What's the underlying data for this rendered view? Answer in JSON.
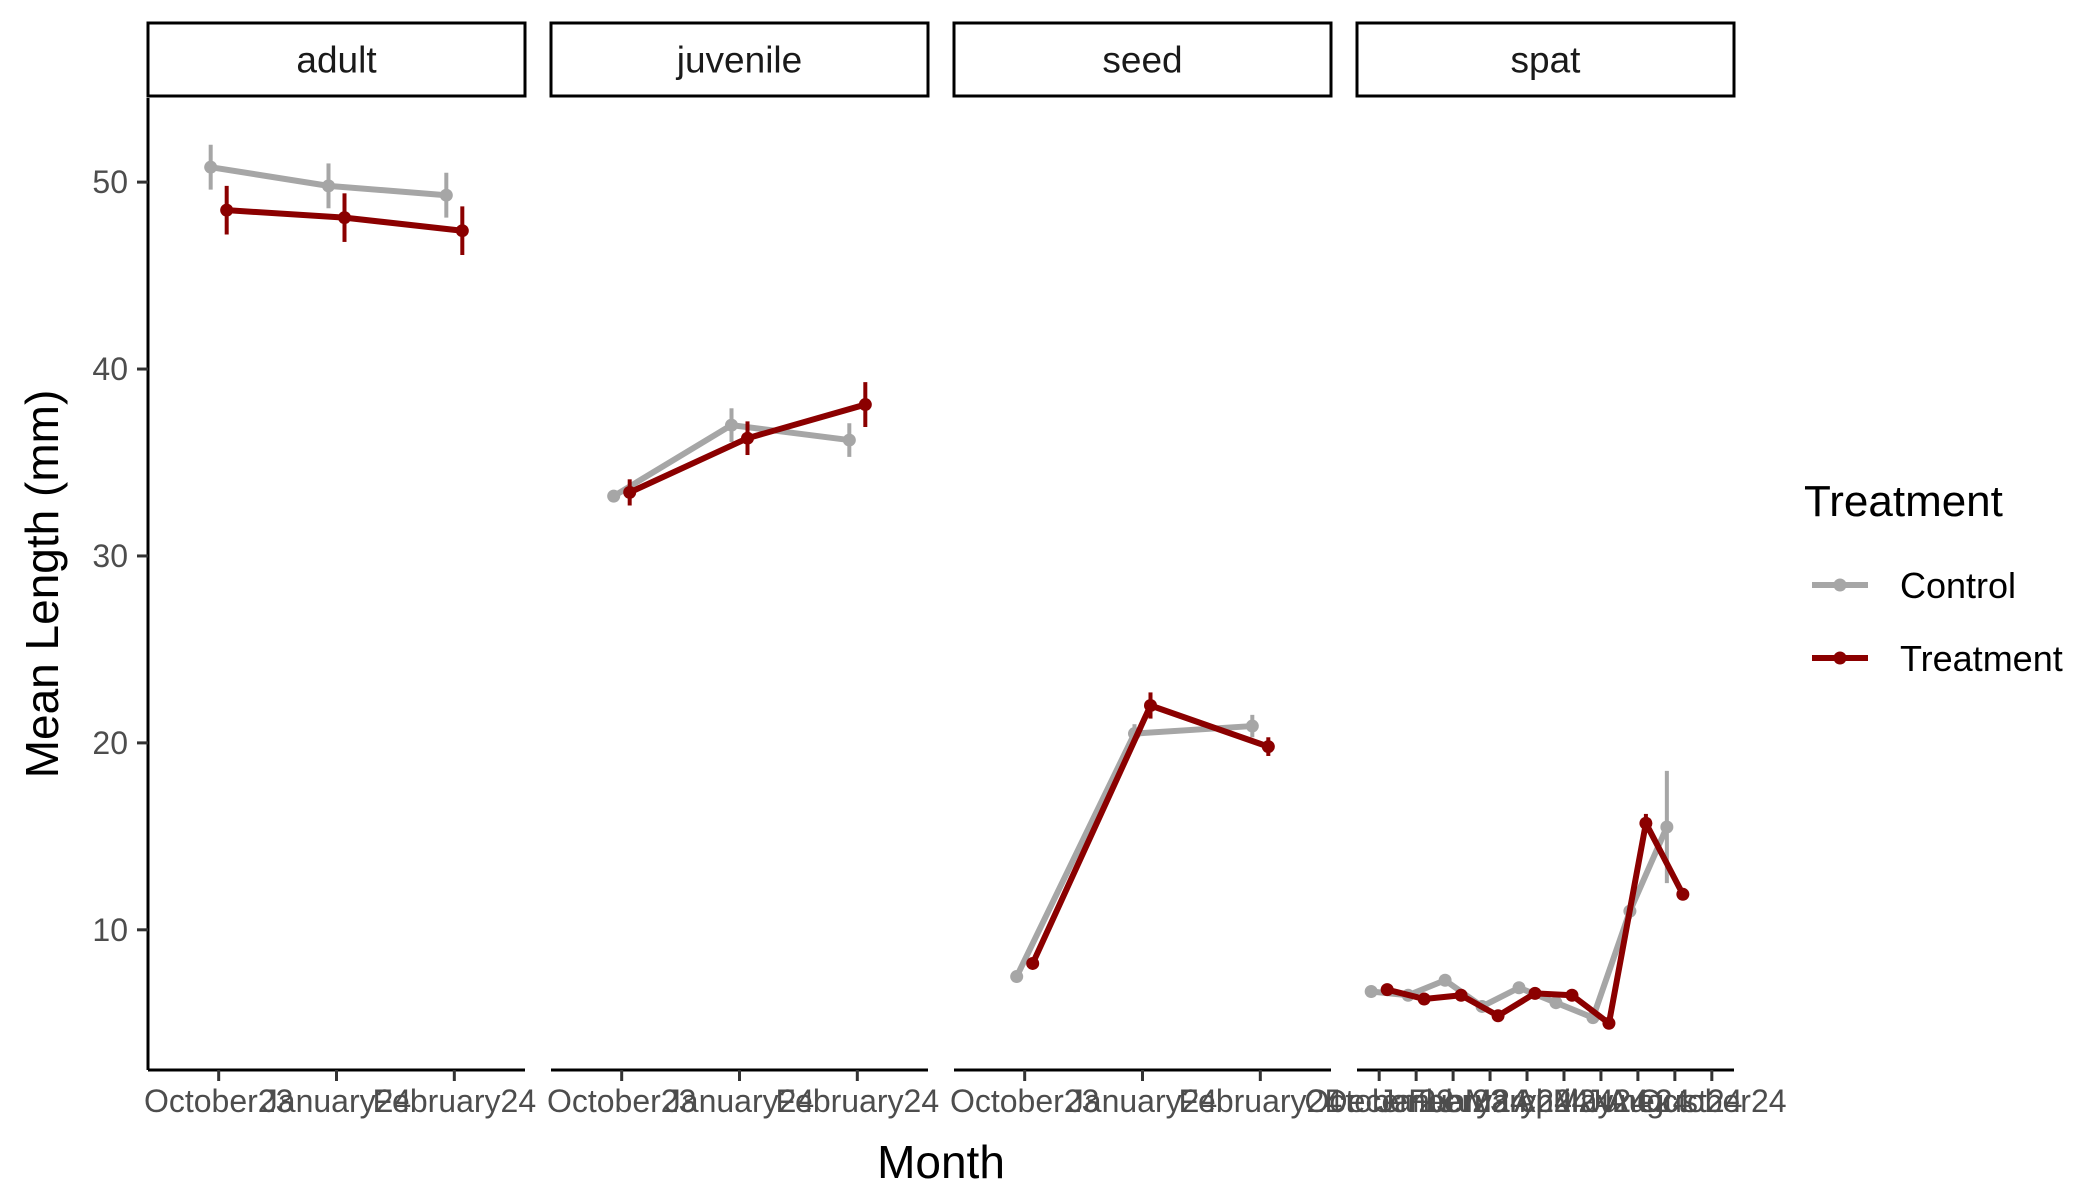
{
  "chart_data": {
    "type": "line",
    "xlabel": "Month",
    "ylabel": "Mean Length (mm)",
    "ylim": [
      2.5,
      54.5
    ],
    "y_ticks": [
      10,
      20,
      30,
      40,
      50
    ],
    "grid": false,
    "legend": {
      "title": "Treatment",
      "position": "right",
      "entries": [
        {
          "name": "Control",
          "color": "#a6a6a6"
        },
        {
          "name": "Treatment",
          "color": "#8b0000"
        }
      ]
    },
    "panels": [
      {
        "label": "adult",
        "categories": [
          "October23",
          "January24",
          "February24"
        ],
        "series": [
          {
            "name": "Control",
            "values": [
              50.8,
              49.8,
              49.3
            ],
            "error": [
              1.2,
              1.2,
              1.2
            ]
          },
          {
            "name": "Treatment",
            "values": [
              48.5,
              48.1,
              47.4
            ],
            "error": [
              1.3,
              1.3,
              1.3
            ]
          }
        ]
      },
      {
        "label": "juvenile",
        "categories": [
          "October23",
          "January24",
          "February24"
        ],
        "series": [
          {
            "name": "Control",
            "values": [
              33.2,
              37.0,
              36.2
            ],
            "error": [
              0.3,
              0.9,
              0.9
            ]
          },
          {
            "name": "Treatment",
            "values": [
              33.4,
              36.3,
              38.1
            ],
            "error": [
              0.7,
              0.9,
              1.2
            ]
          }
        ]
      },
      {
        "label": "seed",
        "categories": [
          "October23",
          "January24",
          "February24"
        ],
        "series": [
          {
            "name": "Control",
            "values": [
              7.5,
              20.5,
              20.9
            ],
            "error": [
              0.2,
              0.5,
              0.6
            ]
          },
          {
            "name": "Treatment",
            "values": [
              8.2,
              22.0,
              19.8
            ],
            "error": [
              0.3,
              0.7,
              0.5
            ]
          }
        ]
      },
      {
        "label": "spat",
        "categories": [
          "October23",
          "December23",
          "January24",
          "February24",
          "March24",
          "April24",
          "May24",
          "June24",
          "August24",
          "October24"
        ],
        "tick_labels": [
          "October23",
          "December23",
          "January24",
          "February24",
          "March24",
          "April24",
          "May24",
          "June24",
          "August24",
          "October24"
        ],
        "series": [
          {
            "name": "Control",
            "values": [
              6.7,
              6.5,
              7.3,
              5.9,
              6.9,
              6.1,
              5.3,
              11.0,
              15.5,
              null
            ],
            "error": [
              0.2,
              0.2,
              0.2,
              0.2,
              0.2,
              0.2,
              0.2,
              0.4,
              3.0,
              null
            ]
          },
          {
            "name": "Treatment",
            "values": [
              6.8,
              6.3,
              6.5,
              5.4,
              6.6,
              6.5,
              5.0,
              15.7,
              11.9,
              null
            ],
            "error": [
              0.2,
              0.2,
              0.2,
              0.2,
              0.2,
              0.2,
              0.2,
              0.5,
              0.3,
              null
            ]
          }
        ]
      }
    ]
  }
}
